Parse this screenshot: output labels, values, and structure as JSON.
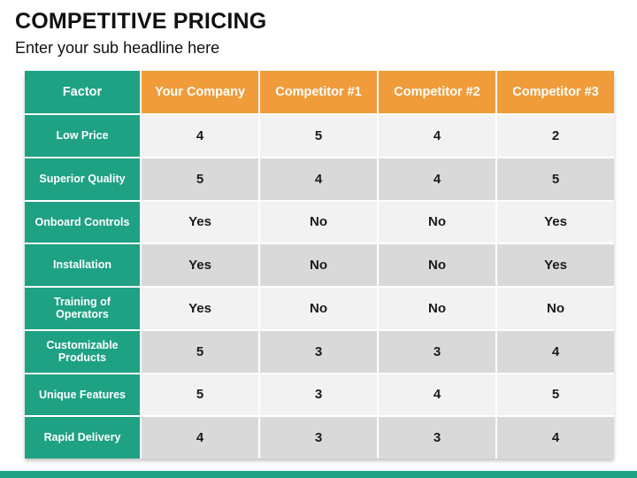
{
  "slide": {
    "title": "COMPETITIVE PRICING",
    "subtitle": "Enter your sub headline here"
  },
  "colors": {
    "teal": "#1FA184",
    "orange": "#F09C3A",
    "row_light": "#F2F2F2",
    "row_dark": "#D9D9D9"
  },
  "table": {
    "headers": [
      "Factor",
      "Your Company",
      "Competitor #1",
      "Competitor #2",
      "Competitor #3"
    ],
    "rows": [
      {
        "factor": "Low Price",
        "values": [
          "4",
          "5",
          "4",
          "2"
        ]
      },
      {
        "factor": "Superior Quality",
        "values": [
          "5",
          "4",
          "4",
          "5"
        ]
      },
      {
        "factor": "Onboard Controls",
        "values": [
          "Yes",
          "No",
          "No",
          "Yes"
        ]
      },
      {
        "factor": "Installation",
        "values": [
          "Yes",
          "No",
          "No",
          "Yes"
        ]
      },
      {
        "factor": "Training of Operators",
        "values": [
          "Yes",
          "No",
          "No",
          "No"
        ]
      },
      {
        "factor": "Customizable Products",
        "values": [
          "5",
          "3",
          "3",
          "4"
        ]
      },
      {
        "factor": "Unique Features",
        "values": [
          "5",
          "3",
          "4",
          "5"
        ]
      },
      {
        "factor": "Rapid Delivery",
        "values": [
          "4",
          "3",
          "3",
          "4"
        ]
      }
    ]
  }
}
